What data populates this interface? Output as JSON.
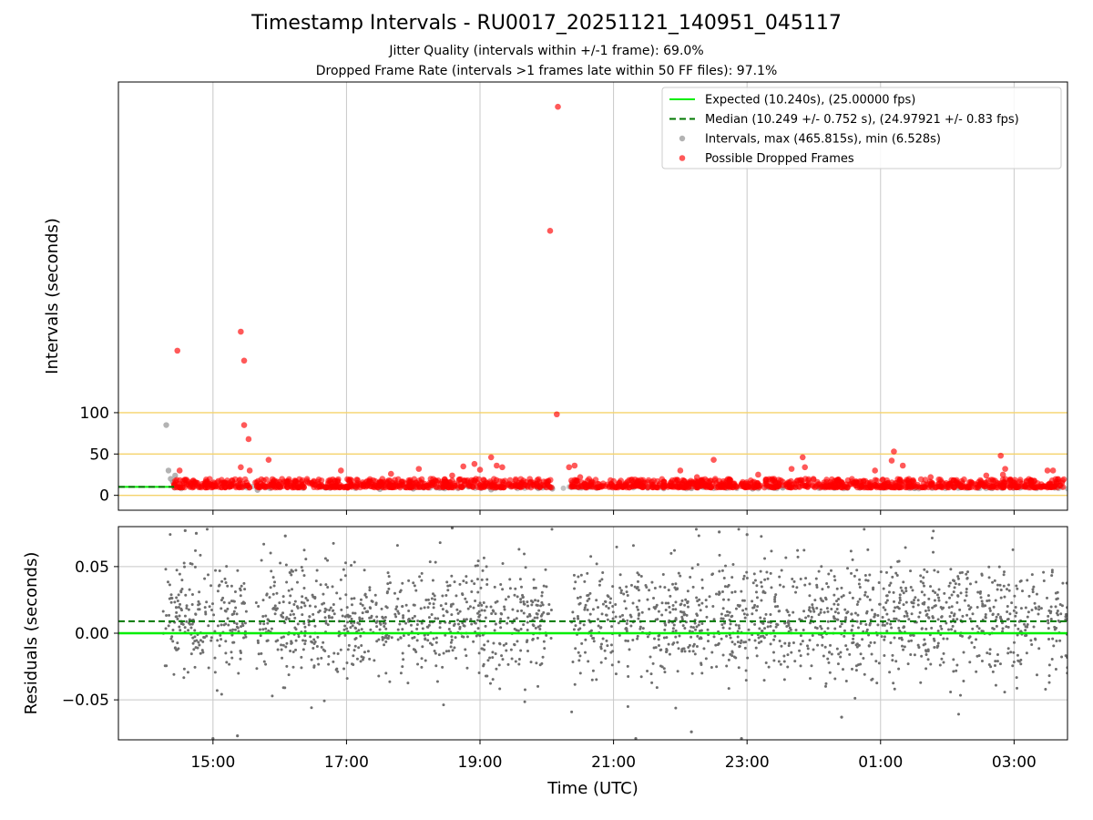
{
  "title": "Timestamp Intervals - RU0017_20251121_140951_045117",
  "subtitle_lines": [
    "Jitter Quality (intervals within +/-1 frame): 69.0%",
    "Dropped Frame Rate (intervals >1 frames late within 50 FF files): 97.1%"
  ],
  "colors": {
    "expected": "#00ee00",
    "median": "#007700",
    "intervals": "#9a9a9a",
    "dropped": "#ff0000",
    "residuals": "#6e6e6e",
    "threshold": "#f5d36b",
    "grid": "#c8c8c8"
  },
  "chart_data": [
    {
      "type": "scatter",
      "panel": "top",
      "xlabel": "",
      "ylabel": "Intervals (seconds)",
      "ylim": [
        -18,
        500
      ],
      "yticks": [
        0,
        50,
        100
      ],
      "ytick_labels": [
        "0",
        "50",
        "100"
      ],
      "reference_lines": [
        {
          "name": "Expected (10.240s), (25.00000 fps)",
          "y": 10.24,
          "style": "solid"
        },
        {
          "name": "Median (10.249 +/- 0.752 s), (24.97921 +/- 0.83 fps)",
          "y": 10.249,
          "style": "dashed"
        },
        {
          "y": 50,
          "style": "threshold"
        },
        {
          "y": 100,
          "style": "threshold"
        }
      ],
      "legend": {
        "placement": "top-right",
        "entries": [
          "Expected (10.240s), (25.00000 fps)",
          "Median (10.249 +/- 0.752 s), (24.97921 +/- 0.83 fps)",
          "Intervals, max (465.815s), min (6.528s)",
          "Possible Dropped Frames"
        ]
      },
      "series": [
        {
          "name": "Intervals, max (465.815s), min (6.528s)",
          "points": [
            {
              "t": "14:18",
              "y": 85
            },
            {
              "t": "14:20",
              "y": 30
            },
            {
              "t": "14:22",
              "y": 20
            },
            {
              "t": "14:26",
              "y": 24
            },
            {
              "t": "14:24",
              "y": 16
            },
            {
              "t": "15:40",
              "y": 6.5
            },
            {
              "t": "17:30",
              "y": 7.5
            },
            {
              "t": "18:00",
              "y": 8
            },
            {
              "t": "19:10",
              "y": 7
            },
            {
              "t": "20:05",
              "y": 8
            },
            {
              "t": "20:45",
              "y": 9
            },
            {
              "t": "22:10",
              "y": 8.5
            },
            {
              "t": "23:05",
              "y": 8
            },
            {
              "t": "00:30",
              "y": 9
            },
            {
              "t": "02:40",
              "y": 8.5
            }
          ]
        },
        {
          "name": "Possible Dropped Frames",
          "points": [
            {
              "t": "14:28",
              "y": 175
            },
            {
              "t": "15:25",
              "y": 198
            },
            {
              "t": "15:28",
              "y": 163
            },
            {
              "t": "15:28",
              "y": 85
            },
            {
              "t": "15:32",
              "y": 68
            },
            {
              "t": "15:25",
              "y": 34
            },
            {
              "t": "15:33",
              "y": 30
            },
            {
              "t": "14:30",
              "y": 30
            },
            {
              "t": "15:50",
              "y": 43
            },
            {
              "t": "16:55",
              "y": 30
            },
            {
              "t": "17:40",
              "y": 26
            },
            {
              "t": "18:05",
              "y": 32
            },
            {
              "t": "18:35",
              "y": 24
            },
            {
              "t": "18:45",
              "y": 35
            },
            {
              "t": "18:55",
              "y": 38
            },
            {
              "t": "19:00",
              "y": 31
            },
            {
              "t": "19:10",
              "y": 46
            },
            {
              "t": "19:15",
              "y": 36
            },
            {
              "t": "19:20",
              "y": 34
            },
            {
              "t": "20:03",
              "y": 320
            },
            {
              "t": "20:10",
              "y": 470
            },
            {
              "t": "20:09",
              "y": 98
            },
            {
              "t": "20:20",
              "y": 34
            },
            {
              "t": "20:25",
              "y": 36
            },
            {
              "t": "20:30",
              "y": 22
            },
            {
              "t": "22:00",
              "y": 30
            },
            {
              "t": "22:15",
              "y": 22
            },
            {
              "t": "22:30",
              "y": 43
            },
            {
              "t": "23:10",
              "y": 25
            },
            {
              "t": "23:40",
              "y": 32
            },
            {
              "t": "23:50",
              "y": 46
            },
            {
              "t": "23:52",
              "y": 34
            },
            {
              "t": "00:55",
              "y": 30
            },
            {
              "t": "01:12",
              "y": 53
            },
            {
              "t": "01:10",
              "y": 42
            },
            {
              "t": "01:20",
              "y": 36
            },
            {
              "t": "01:45",
              "y": 22
            },
            {
              "t": "02:35",
              "y": 24
            },
            {
              "t": "02:48",
              "y": 48
            },
            {
              "t": "02:52",
              "y": 32
            },
            {
              "t": "02:50",
              "y": 25
            },
            {
              "t": "03:30",
              "y": 30
            },
            {
              "t": "03:35",
              "y": 30
            }
          ],
          "dense_band": {
            "t_start": "14:25",
            "t_end": "03:45",
            "gap_start": "15:33",
            "gap_end": "15:38",
            "second_gap_start": "20:05",
            "second_gap_end": "20:22",
            "y_min": 9.5,
            "y_max": 20
          }
        }
      ]
    },
    {
      "type": "scatter",
      "panel": "bottom",
      "xlabel": "Time (UTC)",
      "ylabel": "Residuals (seconds)",
      "ylim": [
        -0.08,
        0.08
      ],
      "yticks": [
        -0.05,
        0.0,
        0.05
      ],
      "ytick_labels": [
        "−0.05",
        "0.00",
        "0.05"
      ],
      "xlim": [
        "13:35",
        "03:48"
      ],
      "xticks": [
        "15:00",
        "17:00",
        "19:00",
        "21:00",
        "23:00",
        "01:00",
        "03:00"
      ],
      "reference_lines": [
        {
          "y": 0.0,
          "style": "solid",
          "color_key": "expected"
        },
        {
          "y": 0.009,
          "style": "dashed",
          "color_key": "median"
        }
      ],
      "series": [
        {
          "name": "",
          "distribution": {
            "mean": 0.01,
            "stdev": 0.022,
            "t_start": "14:15",
            "t_end": "03:48",
            "gaps": [
              [
                "15:30",
                "15:38"
              ],
              [
                "20:05",
                "20:22"
              ]
            ]
          },
          "points": [
            {
              "t": "14:35",
              "y": 0.077
            },
            {
              "t": "14:45",
              "y": 0.075
            },
            {
              "t": "15:00",
              "y": -0.079
            },
            {
              "t": "15:22",
              "y": -0.077
            },
            {
              "t": "16:05",
              "y": 0.073
            },
            {
              "t": "18:35",
              "y": 0.079
            },
            {
              "t": "22:35",
              "y": 0.076
            },
            {
              "t": "23:00",
              "y": 0.074
            },
            {
              "t": "21:20",
              "y": -0.079
            },
            {
              "t": "22:10",
              "y": -0.074
            },
            {
              "t": "22:55",
              "y": -0.079
            },
            {
              "t": "00:25",
              "y": -0.063
            }
          ]
        }
      ]
    }
  ]
}
